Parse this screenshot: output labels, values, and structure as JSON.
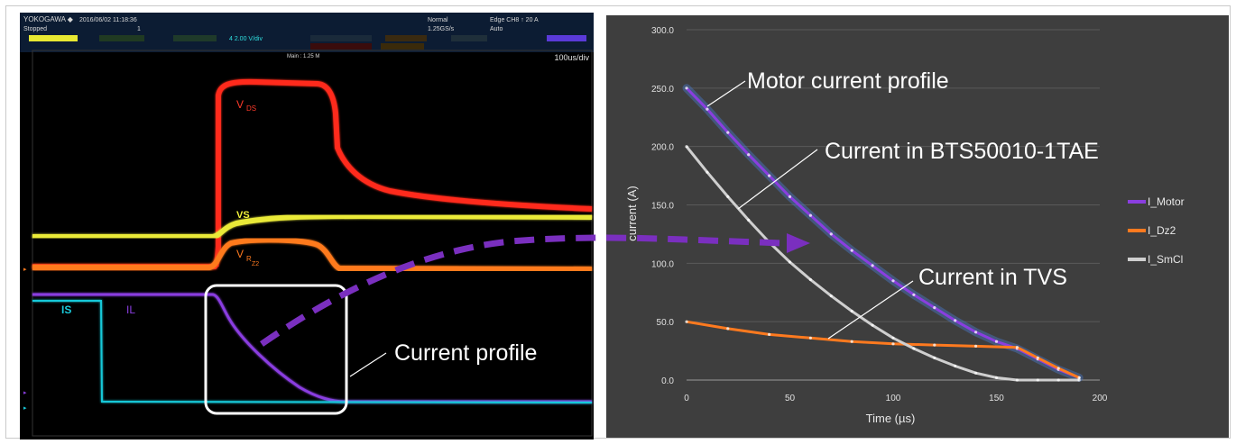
{
  "scope": {
    "brand": "YOKOGAWA ◆",
    "datetime": "2016/06/02 11:18:36",
    "state": "Stopped",
    "acq_count": "1",
    "mode": "Normal",
    "sample_rate": "1.25GS/s",
    "trigger": "Edge CH8 ↑ 20 A",
    "trigger_mode": "Auto",
    "ch4_setting": "4  2.00 V/div",
    "main_length": "Main : 1.25 M",
    "timebase": "100us/div",
    "trace_labels": {
      "vds": "V",
      "vds_sub": "DS",
      "vs": "VS",
      "vrz": "V",
      "vrz_sub": "R",
      "vrz_subsub": "Z2",
      "is": "IS",
      "il": "IL"
    },
    "colors": {
      "vds": "#ff2a1a",
      "vs": "#f2f23a",
      "vrz": "#ff7a1f",
      "is": "#19c9d9",
      "il": "#8a3ee0",
      "highlight_box": "#ffffff"
    }
  },
  "callouts": {
    "current_profile": "Current profile",
    "motor_current_profile": "Motor current profile",
    "current_in_bts": "Current in BTS50010-1TAE",
    "current_in_tvs": "Current in TVS"
  },
  "chart_data": {
    "type": "line",
    "xlabel": "Time (µs)",
    "ylabel": "current (A)",
    "xlim": [
      0,
      200
    ],
    "ylim": [
      0,
      300
    ],
    "x_ticks": [
      "0",
      "50",
      "100",
      "150",
      "200"
    ],
    "y_ticks": [
      "0.0",
      "50.0",
      "100.0",
      "150.0",
      "200.0",
      "250.0",
      "300.0"
    ],
    "grid": true,
    "legend_position": "right",
    "series": [
      {
        "name": "I_Motor",
        "color": "#8a3ee0",
        "points": [
          [
            0,
            250
          ],
          [
            10,
            232
          ],
          [
            20,
            212
          ],
          [
            30,
            193
          ],
          [
            40,
            175
          ],
          [
            50,
            157
          ],
          [
            60,
            141
          ],
          [
            70,
            125
          ],
          [
            80,
            111
          ],
          [
            90,
            98
          ],
          [
            100,
            85
          ],
          [
            110,
            73
          ],
          [
            120,
            62
          ],
          [
            130,
            51
          ],
          [
            140,
            41
          ],
          [
            150,
            33
          ],
          [
            160,
            27
          ],
          [
            170,
            18
          ],
          [
            180,
            9
          ],
          [
            190,
            2
          ]
        ]
      },
      {
        "name": "I_Dz2",
        "color": "#ff7a1f",
        "points": [
          [
            0,
            50
          ],
          [
            20,
            44
          ],
          [
            40,
            39
          ],
          [
            60,
            36
          ],
          [
            80,
            33
          ],
          [
            100,
            31
          ],
          [
            120,
            30
          ],
          [
            140,
            29
          ],
          [
            160,
            28
          ],
          [
            170,
            19
          ],
          [
            180,
            10
          ],
          [
            190,
            2
          ]
        ]
      },
      {
        "name": "I_SmCl",
        "color": "#cfcfcf",
        "points": [
          [
            0,
            200
          ],
          [
            10,
            178
          ],
          [
            20,
            157
          ],
          [
            30,
            137
          ],
          [
            40,
            118
          ],
          [
            50,
            101
          ],
          [
            60,
            86
          ],
          [
            70,
            72
          ],
          [
            80,
            59
          ],
          [
            90,
            47
          ],
          [
            100,
            36
          ],
          [
            110,
            27
          ],
          [
            120,
            19
          ],
          [
            130,
            12
          ],
          [
            140,
            6
          ],
          [
            150,
            2
          ],
          [
            160,
            0
          ],
          [
            170,
            0
          ],
          [
            180,
            0
          ],
          [
            190,
            0
          ]
        ]
      }
    ]
  }
}
